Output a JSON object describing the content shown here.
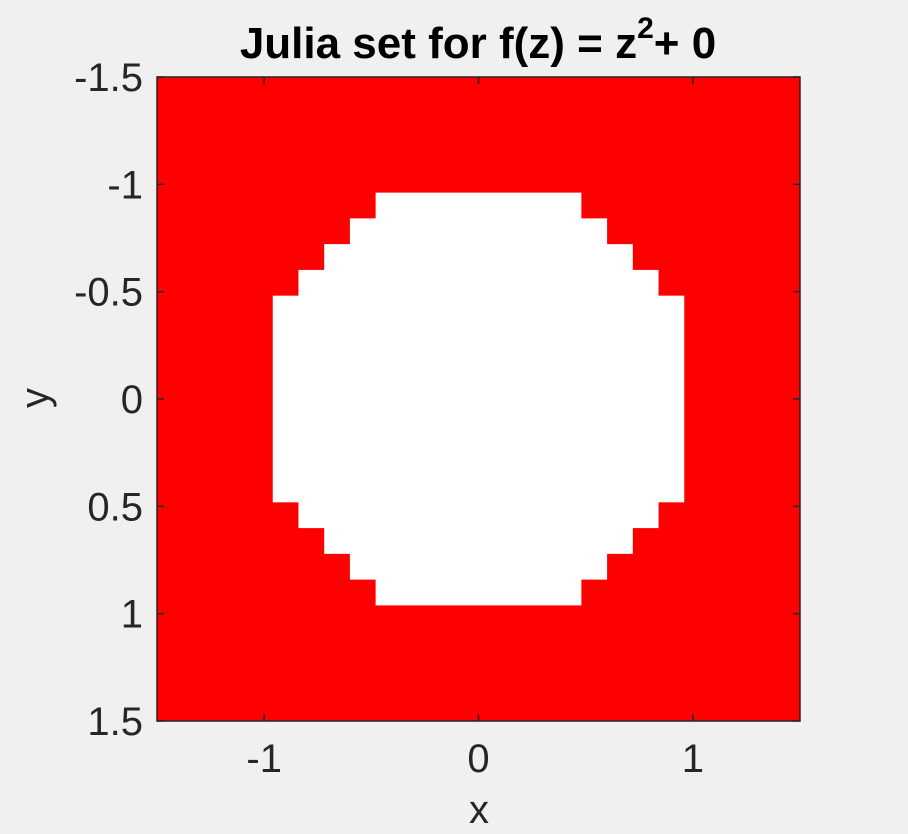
{
  "chart_data": {
    "type": "heatmap",
    "title": {
      "prefix": "Julia set for f(z) = z",
      "exponent": "2",
      "suffix": "+ 0"
    },
    "xlabel": "x",
    "ylabel": "y",
    "xlim": [
      -1.5,
      1.5
    ],
    "ylim": [
      -1.5,
      1.5
    ],
    "y_axis_direction": "reversed",
    "grid": false,
    "legend": "none",
    "x_ticks": [
      {
        "value": -1,
        "label": "-1"
      },
      {
        "value": 0,
        "label": "0"
      },
      {
        "value": 1,
        "label": "1"
      }
    ],
    "y_ticks": [
      {
        "value": -1.5,
        "label": "-1.5"
      },
      {
        "value": -1,
        "label": "-1"
      },
      {
        "value": -0.5,
        "label": "-0.5"
      },
      {
        "value": 0,
        "label": "0"
      },
      {
        "value": 0.5,
        "label": "0.5"
      },
      {
        "value": 1,
        "label": "1"
      },
      {
        "value": 1.5,
        "label": "1.5"
      }
    ],
    "colors": {
      "escaped": "#ff0000",
      "bounded": "#ffffff",
      "axes_frame": "#262626",
      "figure_background": "#f0f0f0"
    },
    "bounded_region_rows": [
      {
        "y_range": [
          -0.96,
          -0.84
        ],
        "x_range": [
          -0.48,
          0.48
        ]
      },
      {
        "y_range": [
          -0.84,
          -0.72
        ],
        "x_range": [
          -0.6,
          0.6
        ]
      },
      {
        "y_range": [
          -0.72,
          -0.6
        ],
        "x_range": [
          -0.72,
          0.72
        ]
      },
      {
        "y_range": [
          -0.6,
          -0.48
        ],
        "x_range": [
          -0.84,
          0.84
        ]
      },
      {
        "y_range": [
          -0.48,
          0.48
        ],
        "x_range": [
          -0.96,
          0.96
        ]
      },
      {
        "y_range": [
          0.48,
          0.6
        ],
        "x_range": [
          -0.84,
          0.84
        ]
      },
      {
        "y_range": [
          0.6,
          0.72
        ],
        "x_range": [
          -0.72,
          0.72
        ]
      },
      {
        "y_range": [
          0.72,
          0.84
        ],
        "x_range": [
          -0.6,
          0.6
        ]
      },
      {
        "y_range": [
          0.84,
          0.96
        ],
        "x_range": [
          -0.48,
          0.48
        ]
      }
    ]
  }
}
